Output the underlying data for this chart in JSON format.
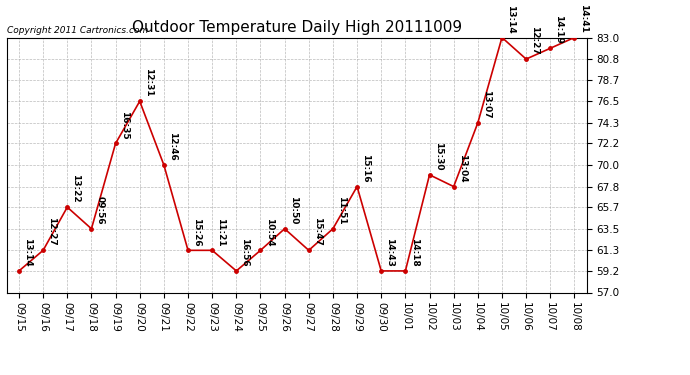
{
  "title": "Outdoor Temperature Daily High 20111009",
  "copyright": "Copyright 2011 Cartronics.com",
  "dates": [
    "09/15",
    "09/16",
    "09/17",
    "09/18",
    "09/19",
    "09/20",
    "09/21",
    "09/22",
    "09/23",
    "09/24",
    "09/25",
    "09/26",
    "09/27",
    "09/28",
    "09/29",
    "09/30",
    "10/01",
    "10/02",
    "10/03",
    "10/04",
    "10/05",
    "10/06",
    "10/07",
    "10/08"
  ],
  "values": [
    59.2,
    61.3,
    65.7,
    63.5,
    72.2,
    76.5,
    70.0,
    61.3,
    61.3,
    59.2,
    61.3,
    63.5,
    61.3,
    63.5,
    67.8,
    59.2,
    59.2,
    69.0,
    67.8,
    74.3,
    83.0,
    80.8,
    81.9,
    83.0
  ],
  "labels": [
    "13:14",
    "12:27",
    "13:22",
    "09:56",
    "16:35",
    "12:31",
    "12:46",
    "15:26",
    "11:21",
    "16:56",
    "10:54",
    "10:50",
    "15:47",
    "11:51",
    "15:16",
    "14:43",
    "14:18",
    "15:30",
    "13:04",
    "13:07",
    "13:14",
    "12:27",
    "14:19",
    "14:41"
  ],
  "ylim": [
    57.0,
    83.0
  ],
  "yticks": [
    57.0,
    59.2,
    61.3,
    63.5,
    65.7,
    67.8,
    70.0,
    72.2,
    74.3,
    76.5,
    78.7,
    80.8,
    83.0
  ],
  "line_color": "#cc0000",
  "marker_color": "#cc0000",
  "bg_color": "#ffffff",
  "grid_color": "#aaaaaa",
  "title_fontsize": 11,
  "label_fontsize": 6.5,
  "axis_fontsize": 7.5,
  "copyright_fontsize": 6.5
}
